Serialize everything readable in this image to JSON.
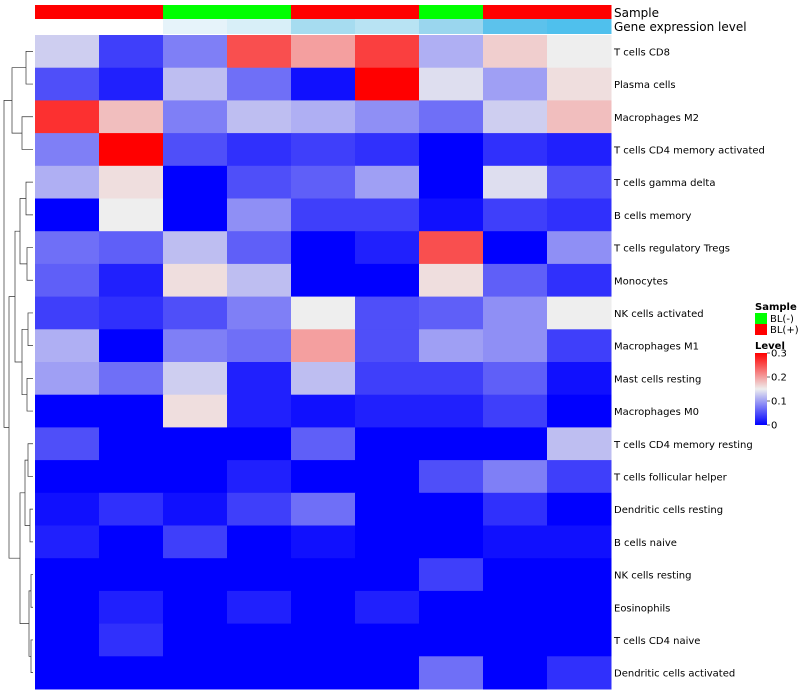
{
  "chart_data": {
    "type": "heatmap",
    "annotation_labels": {
      "sample": "Sample",
      "gene_expression_level": "Gene expression level"
    },
    "columns": 9,
    "sample_annotation": [
      "BL(+)",
      "BL(+)",
      "BL(-)",
      "BL(-)",
      "BL(+)",
      "BL(+)",
      "BL(-)",
      "BL(+)",
      "BL(+)"
    ],
    "gene_expression_annotation_colors": [
      "#ffffff",
      "#ffffff",
      "#e6f3fa",
      "#d8eff8",
      "#a6dcf0",
      "#b8e3f3",
      "#9ad6ee",
      "#5cc2ec",
      "#4fc0ed"
    ],
    "rows": [
      "T cells CD8",
      "Plasma cells",
      "Macrophages M2",
      "T cells CD4 memory activated",
      "T cells gamma delta",
      "B cells memory",
      "T cells regulatory  Tregs",
      "Monocytes",
      "NK cells activated",
      "Macrophages M1",
      "Mast cells resting",
      "Macrophages M0",
      "T cells CD4 memory resting",
      "T cells follicular helper",
      "Dendritic cells resting",
      "B cells naive",
      "NK cells resting",
      "Eosinophils",
      "T cells CD4 naive",
      "Dendritic cells activated"
    ],
    "values": [
      [
        0.13,
        0.04,
        0.08,
        0.25,
        0.2,
        0.26,
        0.11,
        0.17,
        0.15
      ],
      [
        0.05,
        0.02,
        0.12,
        0.07,
        0.01,
        0.3,
        0.14,
        0.1,
        0.16
      ],
      [
        0.27,
        0.18,
        0.08,
        0.12,
        0.11,
        0.09,
        0.07,
        0.13,
        0.18
      ],
      [
        0.08,
        0.3,
        0.05,
        0.03,
        0.04,
        0.03,
        0.0,
        0.03,
        0.02
      ],
      [
        0.11,
        0.16,
        0.0,
        0.05,
        0.06,
        0.1,
        0.0,
        0.14,
        0.05
      ],
      [
        0.0,
        0.15,
        0.0,
        0.09,
        0.04,
        0.04,
        0.01,
        0.04,
        0.03
      ],
      [
        0.07,
        0.06,
        0.12,
        0.06,
        0.0,
        0.02,
        0.25,
        0.0,
        0.09
      ],
      [
        0.06,
        0.02,
        0.16,
        0.12,
        0.0,
        0.0,
        0.16,
        0.06,
        0.03
      ],
      [
        0.04,
        0.03,
        0.05,
        0.08,
        0.15,
        0.05,
        0.06,
        0.09,
        0.15
      ],
      [
        0.11,
        0.0,
        0.08,
        0.07,
        0.2,
        0.05,
        0.1,
        0.09,
        0.04
      ],
      [
        0.1,
        0.07,
        0.13,
        0.02,
        0.12,
        0.04,
        0.04,
        0.06,
        0.01
      ],
      [
        0.0,
        0.0,
        0.16,
        0.02,
        0.01,
        0.02,
        0.02,
        0.04,
        0.0
      ],
      [
        0.05,
        0.0,
        0.0,
        0.0,
        0.06,
        0.0,
        0.0,
        0.0,
        0.12
      ],
      [
        0.0,
        0.0,
        0.0,
        0.02,
        0.0,
        0.0,
        0.05,
        0.08,
        0.04
      ],
      [
        0.01,
        0.03,
        0.01,
        0.04,
        0.07,
        0.0,
        0.0,
        0.03,
        0.0
      ],
      [
        0.02,
        0.0,
        0.04,
        0.0,
        0.01,
        0.0,
        0.0,
        0.01,
        0.01
      ],
      [
        0.0,
        0.0,
        0.0,
        0.0,
        0.0,
        0.0,
        0.04,
        0.0,
        0.0
      ],
      [
        0.0,
        0.02,
        0.0,
        0.02,
        0.0,
        0.02,
        0.0,
        0.0,
        0.0
      ],
      [
        0.0,
        0.03,
        0.0,
        0.0,
        0.0,
        0.0,
        0.0,
        0.0,
        0.0
      ],
      [
        0.0,
        0.0,
        0.0,
        0.0,
        0.0,
        0.0,
        0.07,
        0.0,
        0.03
      ]
    ],
    "color_scale": {
      "range": [
        0,
        0.3
      ],
      "stops": [
        {
          "value": 0.0,
          "color": "#0000ff"
        },
        {
          "value": 0.15,
          "color": "#eeeeee"
        },
        {
          "value": 0.3,
          "color": "#ff0000"
        }
      ]
    },
    "legend": {
      "sample_title": "Sample",
      "sample_entries": [
        {
          "label": "BL(-)",
          "color": "#00ff00"
        },
        {
          "label": "BL(+)",
          "color": "#ff0000"
        }
      ],
      "level_title": "Level",
      "level_ticks": [
        "0.3",
        "0.2",
        "0.1",
        "0"
      ],
      "level_tick_values": [
        0.3,
        0.2,
        0.1,
        0
      ],
      "placement": "right"
    },
    "sample_colors": {
      "BL(-)": "#00ff00",
      "BL(+)": "#ff0000"
    },
    "row_dendrogram": true
  }
}
